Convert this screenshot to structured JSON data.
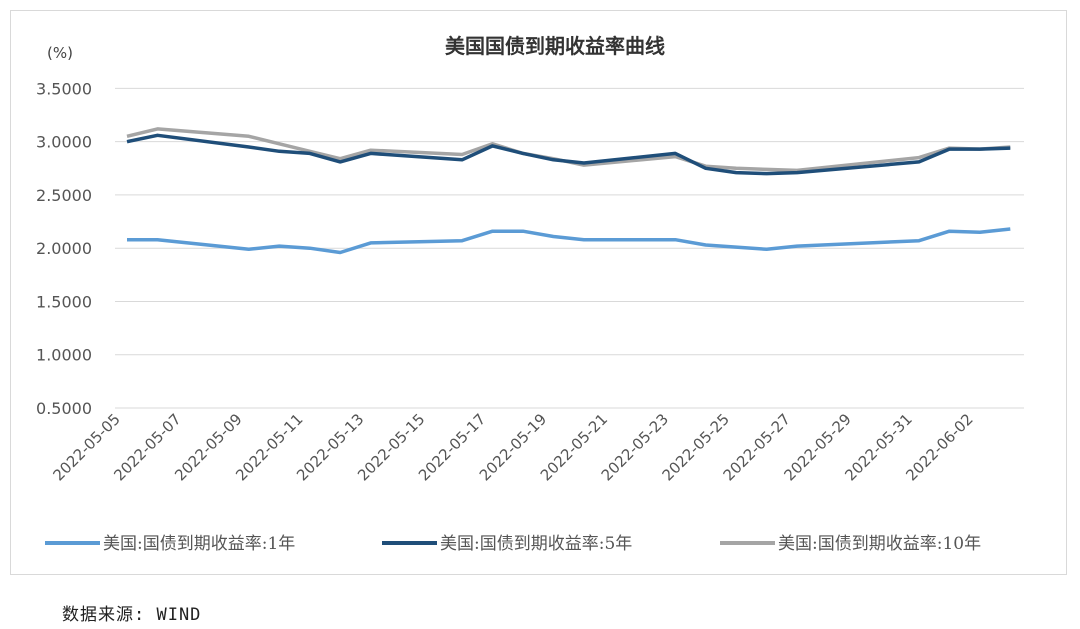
{
  "chart_data": {
    "type": "line",
    "title": "美国国债到期收益率曲线",
    "ylabel": "(%)",
    "xlabel": "",
    "ylim": [
      0.5,
      3.5
    ],
    "yticks": [
      "0.5000",
      "1.0000",
      "1.5000",
      "2.0000",
      "2.5000",
      "3.0000",
      "3.5000"
    ],
    "xticks": [
      "2022-05-05",
      "2022-05-07",
      "2022-05-09",
      "2022-05-11",
      "2022-05-13",
      "2022-05-15",
      "2022-05-17",
      "2022-05-19",
      "2022-05-21",
      "2022-05-23",
      "2022-05-25",
      "2022-05-27",
      "2022-05-29",
      "2022-05-31",
      "2022-06-02"
    ],
    "grid": true,
    "legend_position": "bottom",
    "x": [
      "2022-05-05",
      "2022-05-06",
      "2022-05-09",
      "2022-05-10",
      "2022-05-11",
      "2022-05-12",
      "2022-05-13",
      "2022-05-16",
      "2022-05-17",
      "2022-05-18",
      "2022-05-19",
      "2022-05-20",
      "2022-05-23",
      "2022-05-24",
      "2022-05-25",
      "2022-05-26",
      "2022-05-27",
      "2022-05-31",
      "2022-06-01",
      "2022-06-02",
      "2022-06-03"
    ],
    "series": [
      {
        "name": "美国:国债到期收益率:1年",
        "color": "#5b9bd5",
        "values": [
          2.08,
          2.08,
          1.99,
          2.02,
          2.0,
          1.96,
          2.05,
          2.07,
          2.16,
          2.16,
          2.11,
          2.08,
          2.08,
          2.03,
          2.01,
          1.99,
          2.02,
          2.07,
          2.16,
          2.15,
          2.18
        ]
      },
      {
        "name": "美国:国债到期收益率:5年",
        "color": "#1f4e79",
        "values": [
          3.0,
          3.06,
          2.95,
          2.91,
          2.89,
          2.81,
          2.89,
          2.83,
          2.96,
          2.89,
          2.83,
          2.8,
          2.89,
          2.75,
          2.71,
          2.7,
          2.71,
          2.81,
          2.93,
          2.93,
          2.94
        ]
      },
      {
        "name": "美国:国债到期收益率:10年",
        "color": "#a5a5a5",
        "values": [
          3.05,
          3.12,
          3.05,
          2.98,
          2.91,
          2.84,
          2.92,
          2.88,
          2.98,
          2.89,
          2.84,
          2.78,
          2.86,
          2.77,
          2.75,
          2.74,
          2.73,
          2.85,
          2.94,
          2.93,
          2.95
        ]
      }
    ]
  },
  "source": "数据来源: WIND"
}
